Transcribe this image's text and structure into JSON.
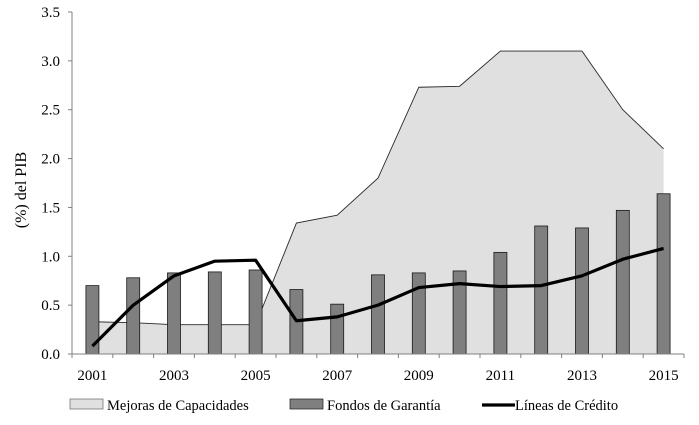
{
  "chart_data": {
    "type": "bar",
    "title": "",
    "xlabel": "",
    "ylabel": "(%) del PIB",
    "ylim": [
      0,
      3.5
    ],
    "yticks": [
      "0.0",
      "0.5",
      "1.0",
      "1.5",
      "2.0",
      "2.5",
      "3.0",
      "3.5"
    ],
    "x": [
      2001,
      2002,
      2003,
      2004,
      2005,
      2006,
      2007,
      2008,
      2009,
      2010,
      2011,
      2012,
      2013,
      2014,
      2015
    ],
    "xtick_labels": [
      "2001",
      "2003",
      "2005",
      "2007",
      "2009",
      "2011",
      "2013",
      "2015"
    ],
    "grid": false,
    "legend_position": "bottom",
    "series": [
      {
        "name": "Mejoras de Capacidades",
        "kind": "area",
        "color": "#e0e0e0",
        "values": [
          0.33,
          0.32,
          0.3,
          0.3,
          0.3,
          1.34,
          1.42,
          1.8,
          2.73,
          2.74,
          3.1,
          3.1,
          3.1,
          2.5,
          2.1
        ]
      },
      {
        "name": "Fondos de Garantía",
        "kind": "bar",
        "color": "#7f7f7f",
        "values": [
          0.7,
          0.78,
          0.83,
          0.84,
          0.86,
          0.66,
          0.51,
          0.81,
          0.83,
          0.85,
          1.04,
          1.31,
          1.29,
          1.47,
          1.64
        ]
      },
      {
        "name": "Líneas de Crédito",
        "kind": "line",
        "color": "#000000",
        "values": [
          0.08,
          0.5,
          0.8,
          0.95,
          0.96,
          0.34,
          0.38,
          0.5,
          0.68,
          0.72,
          0.69,
          0.7,
          0.8,
          0.97,
          1.08
        ]
      }
    ]
  }
}
